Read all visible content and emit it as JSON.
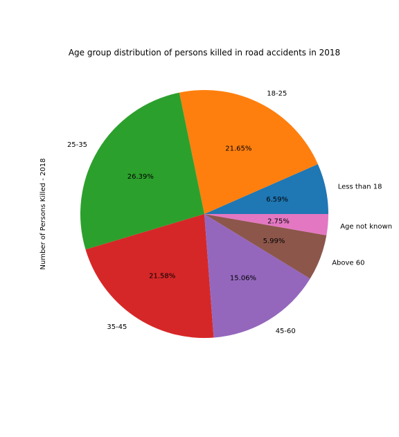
{
  "chart_data": {
    "type": "pie",
    "title": "Age group distribution of persons killed in road accidents in 2018",
    "ylabel": "Number of Persons Killed - 2018",
    "start_angle_deg": 0,
    "direction": "counterclockwise",
    "slices": [
      {
        "label": "Less than 18",
        "percent": 6.59,
        "pct_label": "6.59%",
        "color": "#1f77b4"
      },
      {
        "label": "18-25",
        "percent": 21.65,
        "pct_label": "21.65%",
        "color": "#ff7f0e"
      },
      {
        "label": "25-35",
        "percent": 26.39,
        "pct_label": "26.39%",
        "color": "#2ca02c"
      },
      {
        "label": "35-45",
        "percent": 21.58,
        "pct_label": "21.58%",
        "color": "#d62728"
      },
      {
        "label": "45-60",
        "percent": 15.06,
        "pct_label": "15.06%",
        "color": "#9467bd"
      },
      {
        "label": "Above 60",
        "percent": 5.99,
        "pct_label": "5.99%",
        "color": "#8c564b"
      },
      {
        "label": "Age not known",
        "percent": 2.75,
        "pct_label": "2.75%",
        "color": "#e377c2"
      }
    ]
  }
}
